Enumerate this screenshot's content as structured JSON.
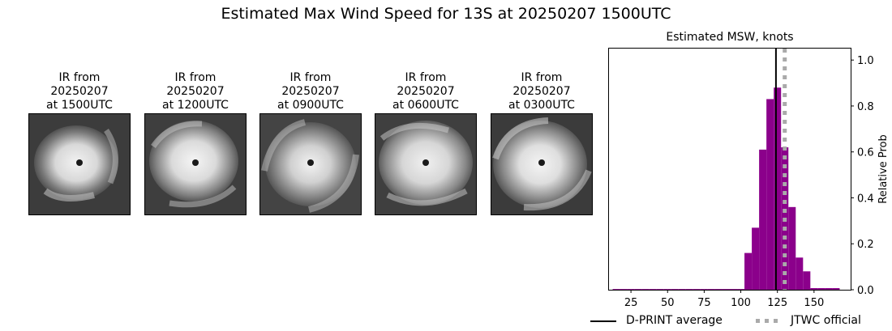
{
  "suptitle": "Estimated Max Wind Speed for 13S at 20250207 1500UTC",
  "panels": [
    {
      "caption_l1": "IR from",
      "caption_l2": "20250207",
      "caption_l3": "at 1500UTC"
    },
    {
      "caption_l1": "IR from",
      "caption_l2": "20250207",
      "caption_l3": "at 1200UTC"
    },
    {
      "caption_l1": "IR from",
      "caption_l2": "20250207",
      "caption_l3": "at 0900UTC"
    },
    {
      "caption_l1": "IR from",
      "caption_l2": "20250207",
      "caption_l3": "at 0600UTC"
    },
    {
      "caption_l1": "IR from",
      "caption_l2": "20250207",
      "caption_l3": "at 0300UTC"
    }
  ],
  "chart_data": {
    "type": "bar",
    "title": "Estimated MSW, knots",
    "xlabel": "",
    "ylabel": "Relative Prob",
    "xlim": [
      10,
      175
    ],
    "ylim": [
      0,
      1.05
    ],
    "xticks": [
      25,
      50,
      75,
      100,
      125,
      150
    ],
    "yticks": [
      "0.0",
      "0.2",
      "0.4",
      "0.6",
      "0.8",
      "1.0"
    ],
    "bin_width": 5,
    "bars": [
      {
        "x": 15,
        "y": 0.003
      },
      {
        "x": 20,
        "y": 0.003
      },
      {
        "x": 25,
        "y": 0.003
      },
      {
        "x": 30,
        "y": 0.003
      },
      {
        "x": 35,
        "y": 0.003
      },
      {
        "x": 40,
        "y": 0.003
      },
      {
        "x": 45,
        "y": 0.003
      },
      {
        "x": 50,
        "y": 0.003
      },
      {
        "x": 55,
        "y": 0.003
      },
      {
        "x": 60,
        "y": 0.003
      },
      {
        "x": 65,
        "y": 0.003
      },
      {
        "x": 70,
        "y": 0.003
      },
      {
        "x": 75,
        "y": 0.003
      },
      {
        "x": 80,
        "y": 0.003
      },
      {
        "x": 85,
        "y": 0.003
      },
      {
        "x": 90,
        "y": 0.003
      },
      {
        "x": 95,
        "y": 0.003
      },
      {
        "x": 100,
        "y": 0.003
      },
      {
        "x": 105,
        "y": 0.16
      },
      {
        "x": 110,
        "y": 0.27
      },
      {
        "x": 115,
        "y": 0.61
      },
      {
        "x": 120,
        "y": 0.83
      },
      {
        "x": 125,
        "y": 0.88
      },
      {
        "x": 130,
        "y": 0.62
      },
      {
        "x": 135,
        "y": 0.36
      },
      {
        "x": 140,
        "y": 0.14
      },
      {
        "x": 145,
        "y": 0.08
      },
      {
        "x": 150,
        "y": 0.007
      },
      {
        "x": 155,
        "y": 0.007
      },
      {
        "x": 160,
        "y": 0.007
      },
      {
        "x": 165,
        "y": 0.007
      }
    ],
    "bar_color": "#8b008b",
    "dprint_average": 124,
    "jtwc_official": 130,
    "legend": [
      "D-PRINT average",
      "JTWC official"
    ]
  }
}
